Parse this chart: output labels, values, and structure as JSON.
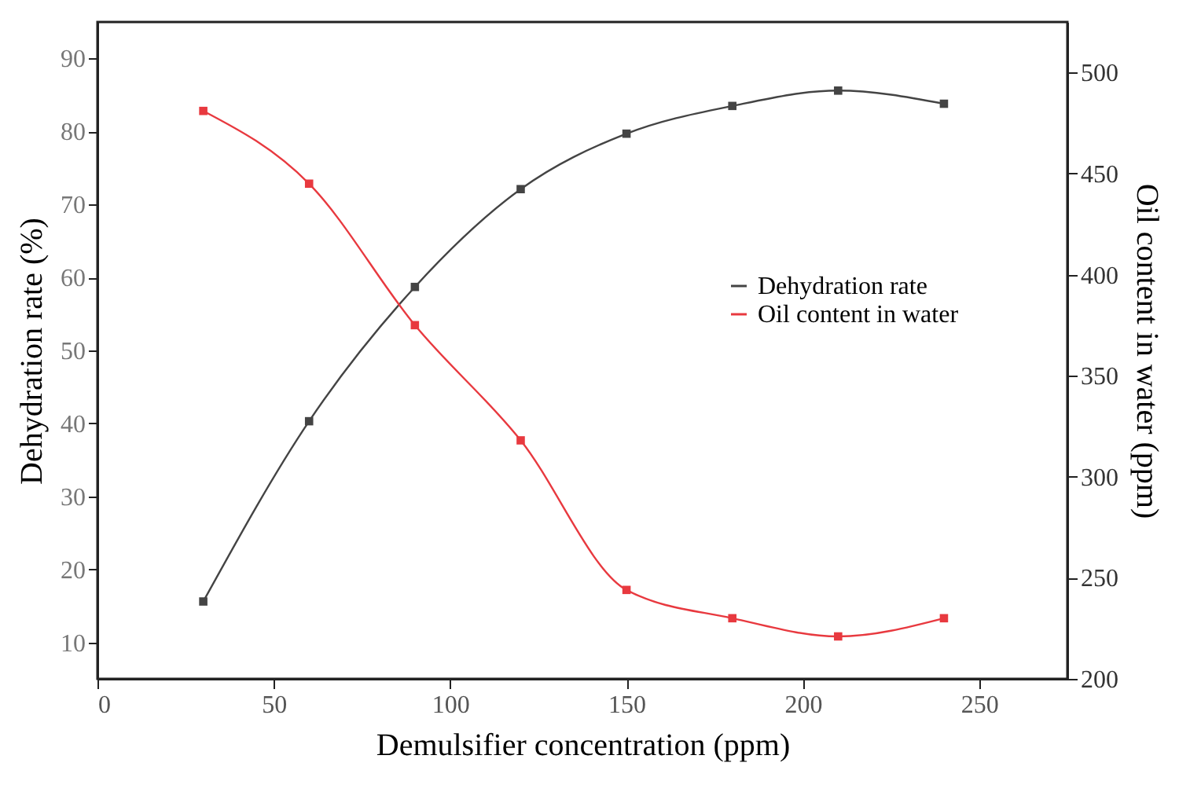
{
  "chart_data": {
    "type": "line",
    "xlabel": "Demulsifier concentration (ppm)",
    "ylabel": "Dehydration rate (%)",
    "y2label": "Oil content in water (ppm)",
    "x": [
      30,
      60,
      90,
      120,
      150,
      180,
      210,
      240
    ],
    "xlim": [
      0,
      275
    ],
    "xticks": [
      0,
      50,
      100,
      150,
      200,
      250
    ],
    "ylim": [
      5,
      95
    ],
    "yticks": [
      10,
      20,
      30,
      40,
      50,
      60,
      70,
      80,
      90
    ],
    "y2lim": [
      200,
      525
    ],
    "y2ticks": [
      200,
      250,
      300,
      350,
      400,
      450,
      500
    ],
    "series": [
      {
        "name": "Dehydration rate",
        "color": "#444444",
        "values": [
          15.6,
          40.3,
          58.7,
          72.1,
          79.7,
          83.5,
          85.6,
          83.8
        ]
      },
      {
        "name": "Oil content in water",
        "color": "#e8393f",
        "axis": "y2",
        "values": [
          481,
          445,
          375,
          318,
          244,
          230,
          221,
          230
        ]
      }
    ],
    "marker": "square",
    "line_style": "solid",
    "grid": false,
    "legend": "right"
  }
}
